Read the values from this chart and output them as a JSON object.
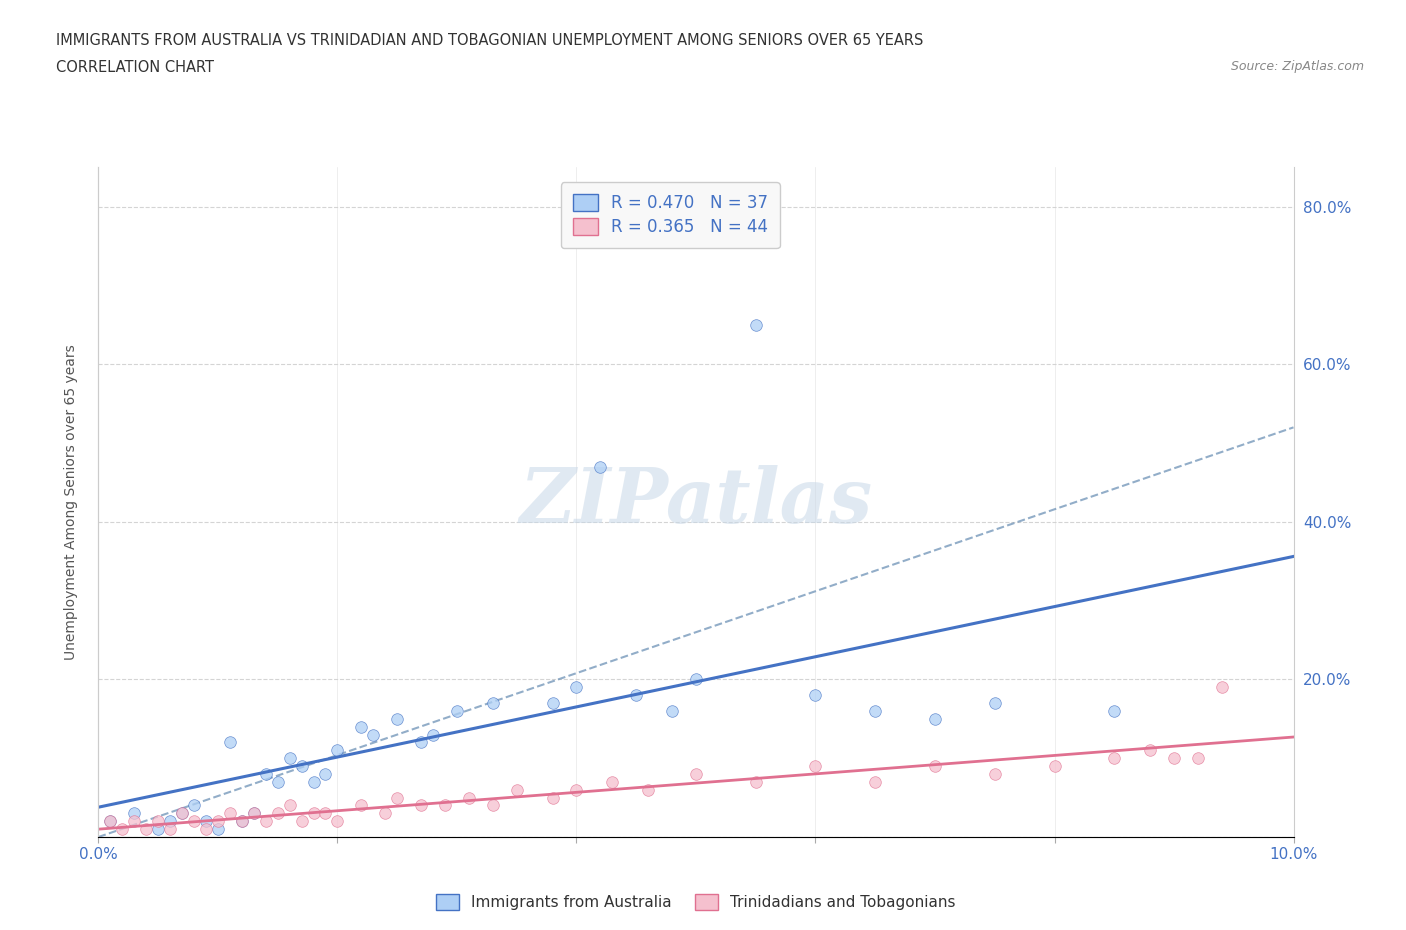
{
  "title_line1": "IMMIGRANTS FROM AUSTRALIA VS TRINIDADIAN AND TOBAGONIAN UNEMPLOYMENT AMONG SENIORS OVER 65 YEARS",
  "title_line2": "CORRELATION CHART",
  "source_text": "Source: ZipAtlas.com",
  "ylabel": "Unemployment Among Seniors over 65 years",
  "x_min": 0.0,
  "x_max": 0.1,
  "y_min": 0.0,
  "y_max": 0.85,
  "x_ticks": [
    0.0,
    0.02,
    0.04,
    0.06,
    0.08,
    0.1
  ],
  "x_tick_labels": [
    "0.0%",
    "",
    "",
    "",
    "",
    "10.0%"
  ],
  "y_ticks": [
    0.0,
    0.2,
    0.4,
    0.6,
    0.8
  ],
  "y_tick_labels_right": [
    "",
    "20.0%",
    "40.0%",
    "60.0%",
    "80.0%"
  ],
  "R_australia": 0.47,
  "N_australia": 37,
  "R_trinidad": 0.365,
  "N_trinidad": 44,
  "australia_color": "#aecff5",
  "australia_edge_color": "#4472c4",
  "australia_line_color": "#4472c4",
  "australia_dash_color": "#8899cc",
  "trinidad_color": "#f5c0ce",
  "trinidad_edge_color": "#e07090",
  "trinidad_line_color": "#e07090",
  "background_color": "#ffffff",
  "grid_color": "#d0d0d0",
  "watermark_text": "ZIPatlas",
  "aus_scatter_x": [
    0.001,
    0.003,
    0.005,
    0.006,
    0.007,
    0.008,
    0.009,
    0.01,
    0.011,
    0.012,
    0.013,
    0.014,
    0.015,
    0.016,
    0.017,
    0.018,
    0.019,
    0.02,
    0.022,
    0.023,
    0.025,
    0.027,
    0.028,
    0.03,
    0.033,
    0.038,
    0.04,
    0.042,
    0.045,
    0.048,
    0.05,
    0.055,
    0.06,
    0.065,
    0.07,
    0.075,
    0.085
  ],
  "aus_scatter_y": [
    0.02,
    0.03,
    0.01,
    0.02,
    0.03,
    0.04,
    0.02,
    0.01,
    0.12,
    0.02,
    0.03,
    0.08,
    0.07,
    0.1,
    0.09,
    0.07,
    0.08,
    0.11,
    0.14,
    0.13,
    0.15,
    0.12,
    0.13,
    0.16,
    0.17,
    0.17,
    0.19,
    0.47,
    0.18,
    0.16,
    0.2,
    0.65,
    0.18,
    0.16,
    0.15,
    0.17,
    0.16
  ],
  "tri_scatter_x": [
    0.001,
    0.002,
    0.003,
    0.004,
    0.005,
    0.006,
    0.007,
    0.008,
    0.009,
    0.01,
    0.011,
    0.012,
    0.013,
    0.014,
    0.015,
    0.016,
    0.017,
    0.018,
    0.019,
    0.02,
    0.022,
    0.024,
    0.025,
    0.027,
    0.029,
    0.031,
    0.033,
    0.035,
    0.038,
    0.04,
    0.043,
    0.046,
    0.05,
    0.055,
    0.06,
    0.065,
    0.07,
    0.075,
    0.08,
    0.085,
    0.088,
    0.09,
    0.092,
    0.094
  ],
  "tri_scatter_y": [
    0.02,
    0.01,
    0.02,
    0.01,
    0.02,
    0.01,
    0.03,
    0.02,
    0.01,
    0.02,
    0.03,
    0.02,
    0.03,
    0.02,
    0.03,
    0.04,
    0.02,
    0.03,
    0.03,
    0.02,
    0.04,
    0.03,
    0.05,
    0.04,
    0.04,
    0.05,
    0.04,
    0.06,
    0.05,
    0.06,
    0.07,
    0.06,
    0.08,
    0.07,
    0.09,
    0.07,
    0.09,
    0.08,
    0.09,
    0.1,
    0.11,
    0.1,
    0.1,
    0.19
  ],
  "aus_line_x": [
    0.0,
    0.065
  ],
  "aus_line_y": [
    0.0,
    0.35
  ],
  "aus_dash_line_x": [
    0.03,
    0.1
  ],
  "aus_dash_line_y": [
    0.2,
    0.52
  ],
  "tri_line_x": [
    0.0,
    0.1
  ],
  "tri_line_y": [
    0.0,
    0.1
  ]
}
